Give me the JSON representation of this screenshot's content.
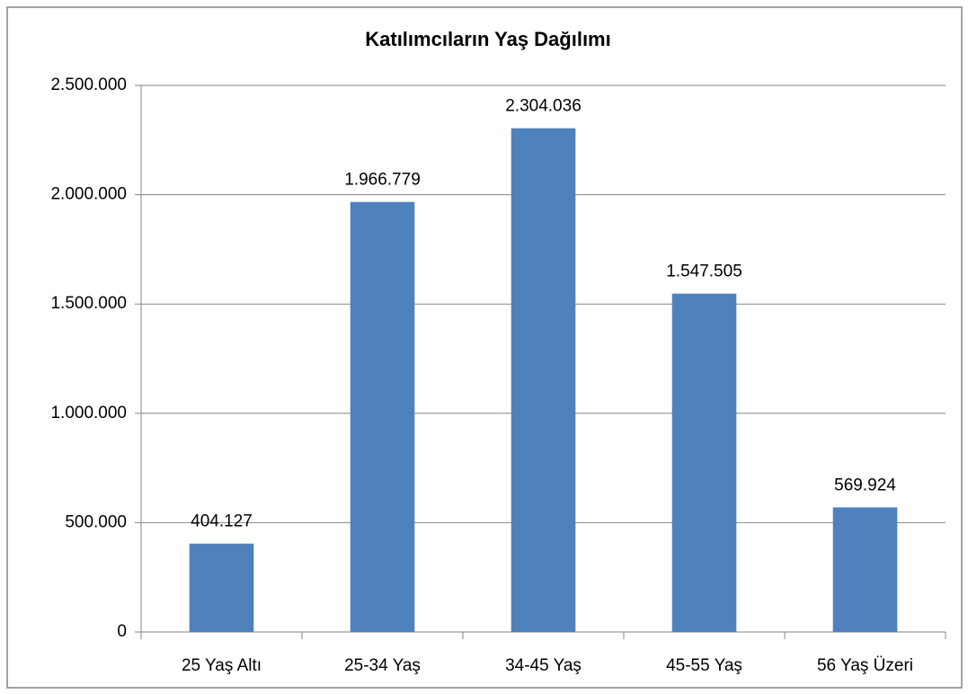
{
  "chart_data": {
    "type": "bar",
    "title": "Katılımcıların Yaş Dağılımı",
    "categories": [
      "25 Yaş Altı",
      "25-34 Yaş",
      "34-45 Yaş",
      "45-55 Yaş",
      "56 Yaş Üzeri"
    ],
    "values": [
      404127,
      1966779,
      2304036,
      1547505,
      569924
    ],
    "value_labels": [
      "404.127",
      "1.966.779",
      "2.304.036",
      "1.547.505",
      "569.924"
    ],
    "color": "#4f81bd",
    "ylim": [
      0,
      2500000
    ],
    "yticks": [
      0,
      {
        "value": 500000,
        "label": "500.000"
      },
      {
        "value": 1000000,
        "label": "1.000.000"
      },
      {
        "value": 1500000,
        "label": "1.500.000"
      },
      {
        "value": 2000000,
        "label": "2.000.000"
      },
      {
        "value": 2500000,
        "label": "2.500.000"
      }
    ],
    "grid": true
  }
}
